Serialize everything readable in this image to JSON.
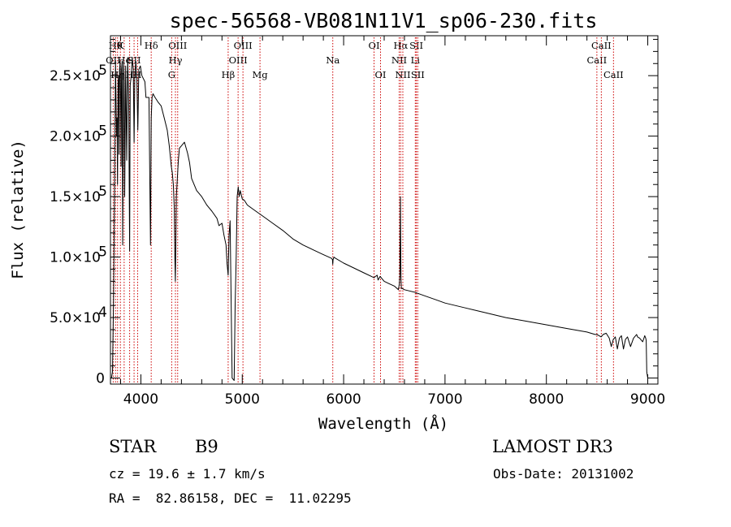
{
  "chart_data": {
    "type": "line",
    "title": "spec-56568-VB081N11V1_sp06-230.fits",
    "xlabel": "Wavelength (Å)",
    "ylabel": "Flux (relative)",
    "xlim": [
      3700,
      9100
    ],
    "ylim": [
      -5000,
      283000
    ],
    "x_ticks": [
      4000,
      5000,
      6000,
      7000,
      8000,
      9000
    ],
    "x_tick_labels": [
      "4000",
      "5000",
      "6000",
      "7000",
      "8000",
      "9000"
    ],
    "y_ticks": [
      {
        "value": 0,
        "mant": "0",
        "exp": ""
      },
      {
        "value": 50000,
        "mant": "5.0×10",
        "exp": "4"
      },
      {
        "value": 100000,
        "mant": "1.0×10",
        "exp": "5"
      },
      {
        "value": 150000,
        "mant": "1.5×10",
        "exp": "5"
      },
      {
        "value": 200000,
        "mant": "2.0×10",
        "exp": "5"
      },
      {
        "value": 250000,
        "mant": "2.5×10",
        "exp": "5"
      }
    ],
    "series": [
      {
        "name": "spectrum",
        "color": "#000000",
        "x": [
          3700,
          3710,
          3720,
          3730,
          3740,
          3750,
          3760,
          3765,
          3770,
          3775,
          3780,
          3785,
          3790,
          3795,
          3800,
          3805,
          3810,
          3815,
          3820,
          3830,
          3835,
          3840,
          3850,
          3860,
          3870,
          3880,
          3889,
          3895,
          3905,
          3915,
          3925,
          3933,
          3940,
          3950,
          3960,
          3970,
          3980,
          3995,
          4010,
          4040,
          4050,
          4080,
          4095,
          4102,
          4110,
          4120,
          4140,
          4170,
          4200,
          4230,
          4260,
          4280,
          4300,
          4310,
          4320,
          4330,
          4335,
          4340,
          4345,
          4350,
          4370,
          4380,
          4400,
          4430,
          4460,
          4480,
          4500,
          4550,
          4600,
          4650,
          4700,
          4750,
          4770,
          4800,
          4820,
          4840,
          4850,
          4861,
          4870,
          4880,
          4900,
          4920,
          4930,
          4940,
          4950,
          4960,
          4970,
          4980,
          5000,
          5020,
          5050,
          5100,
          5150,
          5200,
          5300,
          5400,
          5500,
          5600,
          5700,
          5800,
          5880,
          5890,
          5893,
          5896,
          5905,
          5920,
          6000,
          6100,
          6200,
          6300,
          6330,
          6340,
          6360,
          6400,
          6450,
          6500,
          6540,
          6550,
          6555,
          6558,
          6560,
          6562,
          6564,
          6566,
          6568,
          6570,
          6580,
          6600,
          6700,
          6800,
          6900,
          7000,
          7200,
          7400,
          7600,
          7800,
          8000,
          8200,
          8400,
          8480,
          8500,
          8520,
          8540,
          8560,
          8590,
          8620,
          8640,
          8660,
          8680,
          8700,
          8720,
          8740,
          8760,
          8780,
          8800,
          8830,
          8860,
          8890,
          8900,
          8920,
          8950,
          8970,
          8980,
          8985,
          8990,
          9000
        ],
        "values": [
          0,
          0,
          5000,
          60000,
          150000,
          262000,
          200000,
          215000,
          160000,
          245000,
          250000,
          185000,
          255000,
          262000,
          235000,
          175000,
          255000,
          262000,
          110000,
          260000,
          250000,
          150000,
          258000,
          180000,
          265000,
          225000,
          105000,
          242000,
          250000,
          265000,
          255000,
          195000,
          250000,
          262000,
          248000,
          205000,
          255000,
          258000,
          250000,
          245000,
          232000,
          232000,
          110000,
          215000,
          232000,
          235000,
          232000,
          228000,
          225000,
          215000,
          205000,
          192000,
          175000,
          170000,
          160000,
          140000,
          100000,
          80000,
          110000,
          150000,
          180000,
          190000,
          192000,
          195000,
          186000,
          178000,
          165000,
          155000,
          150000,
          143000,
          138000,
          132000,
          126000,
          128000,
          118000,
          110000,
          95000,
          85000,
          118000,
          130000,
          0,
          -2000,
          60000,
          100000,
          150000,
          158000,
          150000,
          155000,
          148000,
          147000,
          143000,
          140000,
          137000,
          134000,
          128000,
          122000,
          115000,
          110000,
          106000,
          102000,
          99000,
          98000,
          94000,
          98000,
          100000,
          99000,
          95000,
          91000,
          87000,
          83000,
          85000,
          81000,
          84000,
          80000,
          78000,
          76000,
          73000,
          78000,
          85000,
          120000,
          150000,
          118000,
          95000,
          82000,
          76000,
          74000,
          74000,
          73000,
          71000,
          68000,
          65000,
          62000,
          58000,
          54000,
          50000,
          47000,
          44000,
          41000,
          38000,
          36000,
          36000,
          35000,
          34000,
          36000,
          37000,
          33000,
          26000,
          32000,
          34000,
          24000,
          33000,
          35000,
          24000,
          32000,
          34000,
          26000,
          33000,
          36000,
          34000,
          33000,
          30000,
          35000,
          33000,
          31000,
          5000,
          0
        ]
      }
    ],
    "lines": [
      {
        "wave": 3750,
        "row": 0,
        "label": "Hθ"
      },
      {
        "wave": 3727,
        "row": 1,
        "label": "OII"
      },
      {
        "wave": 3770,
        "row": 2,
        "label": "Hη"
      },
      {
        "wave": 3798,
        "row": 0,
        "label": "K"
      },
      {
        "wave": 3835,
        "row": 1,
        "label": "He"
      },
      {
        "wave": 3889,
        "row": 2,
        "label": "H"
      },
      {
        "wave": 3933,
        "row": 1,
        "label": "SII"
      },
      {
        "wave": 3968,
        "row": 2,
        "label": "H"
      },
      {
        "wave": 4102,
        "row": 0,
        "label": "Hδ"
      },
      {
        "wave": 4304,
        "row": 2,
        "label": "G"
      },
      {
        "wave": 4341,
        "row": 1,
        "label": "Hγ"
      },
      {
        "wave": 4363,
        "row": 0,
        "label": "OIII"
      },
      {
        "wave": 4861,
        "row": 2,
        "label": "Hβ"
      },
      {
        "wave": 4959,
        "row": 1,
        "label": "OIII"
      },
      {
        "wave": 5007,
        "row": 0,
        "label": "OIII"
      },
      {
        "wave": 5175,
        "row": 2,
        "label": "Mg"
      },
      {
        "wave": 5893,
        "row": 1,
        "label": "Na"
      },
      {
        "wave": 6300,
        "row": 0,
        "label": "OI"
      },
      {
        "wave": 6364,
        "row": 2,
        "label": "OI"
      },
      {
        "wave": 6548,
        "row": 1,
        "label": "NII"
      },
      {
        "wave": 6563,
        "row": 0,
        "label": "Hα"
      },
      {
        "wave": 6584,
        "row": 2,
        "label": "NII"
      },
      {
        "wave": 6707,
        "row": 1,
        "label": "Li"
      },
      {
        "wave": 6717,
        "row": 0,
        "label": "SII"
      },
      {
        "wave": 6731,
        "row": 2,
        "label": "SII"
      },
      {
        "wave": 8498,
        "row": 1,
        "label": "CaII"
      },
      {
        "wave": 8542,
        "row": 0,
        "label": "CaII"
      },
      {
        "wave": 8662,
        "row": 2,
        "label": "CaII"
      }
    ],
    "line_color": "#cc0000"
  },
  "info": {
    "class_label": "STAR",
    "subclass": "B9",
    "survey": "LAMOST DR3",
    "redshift": "cz = 19.6 ± 1.7 km/s",
    "obs_date": "Obs-Date: 20131002",
    "coords": "RA =  82.86158, DEC =  11.02295"
  }
}
